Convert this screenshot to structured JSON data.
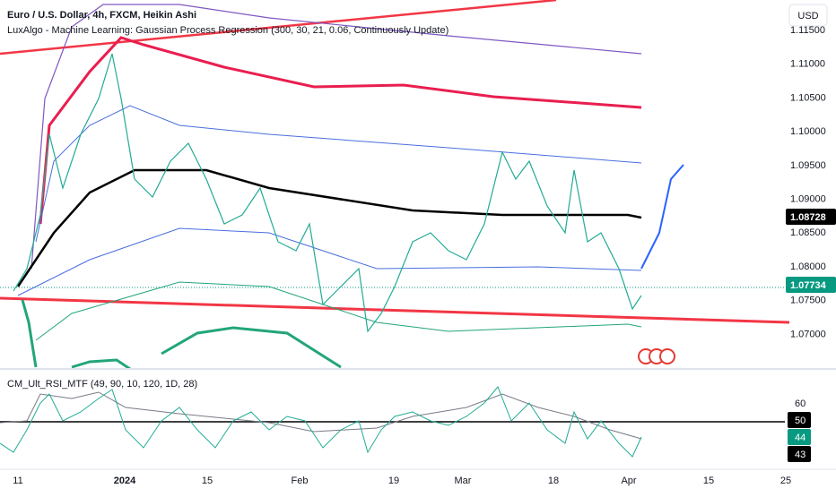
{
  "header": {
    "title": "Euro / U.S. Dollar, 4h, FXCM, Heikin Ashi",
    "indicator": "LuxAlgo - Machine Learning: Gaussian Process Regression (300, 30, 21, 0.06, Continuously Update)",
    "currency": "USD"
  },
  "price_axis": {
    "labels": [
      "1.11500",
      "1.11000",
      "1.10500",
      "1.10000",
      "1.09500",
      "1.09000",
      "1.08500",
      "1.08000",
      "1.07500",
      "1.07000"
    ],
    "badges": [
      "1.08728",
      "1.07734"
    ]
  },
  "rsi_pane": {
    "title": "CM_Ult_RSI_MTF (49, 90, 10, 120, 1D, 28)",
    "labels": [
      "60"
    ],
    "badges": [
      "50",
      "44",
      "43"
    ]
  },
  "time_axis": {
    "labels": [
      "11",
      "2024",
      "15",
      "Feb",
      "19",
      "Mar",
      "18",
      "Apr",
      "15",
      "25"
    ]
  }
}
